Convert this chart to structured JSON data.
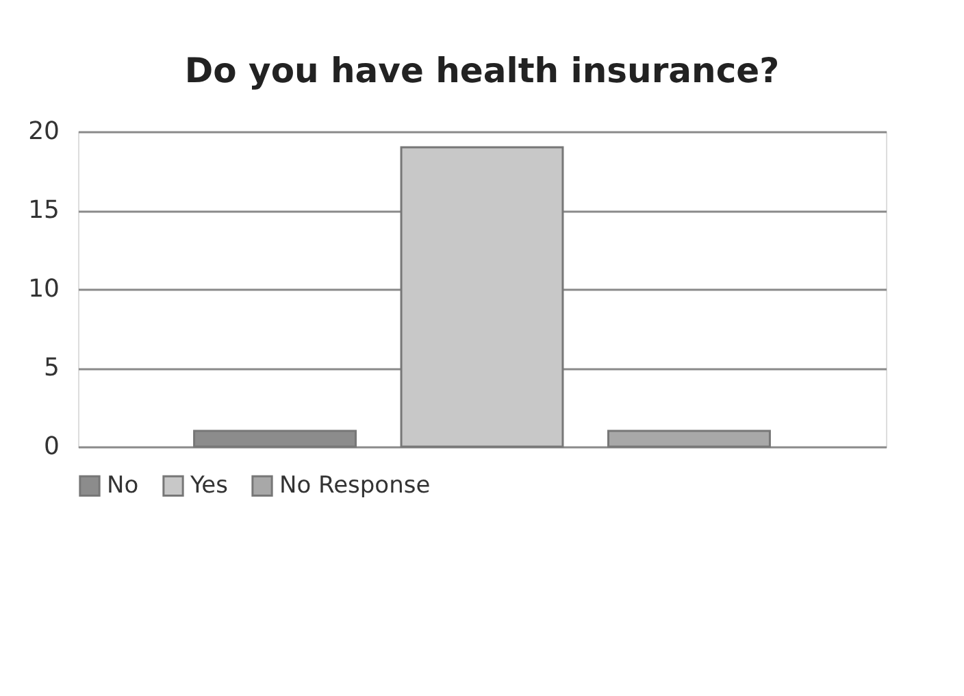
{
  "chart_data": {
    "type": "bar",
    "title": "Do you have health insurance?",
    "categories": [
      null
    ],
    "series": [
      {
        "name": "No",
        "color": "#8c8c8c",
        "values": [
          1
        ]
      },
      {
        "name": "Yes",
        "color": "#c8c8c8",
        "values": [
          19
        ]
      },
      {
        "name": "No Response",
        "color": "#a8a8a8",
        "values": [
          1
        ]
      }
    ],
    "ylim": [
      0,
      20
    ],
    "yticks": [
      0,
      5,
      10,
      15,
      20
    ],
    "grid": "y",
    "legend": "bottom"
  }
}
